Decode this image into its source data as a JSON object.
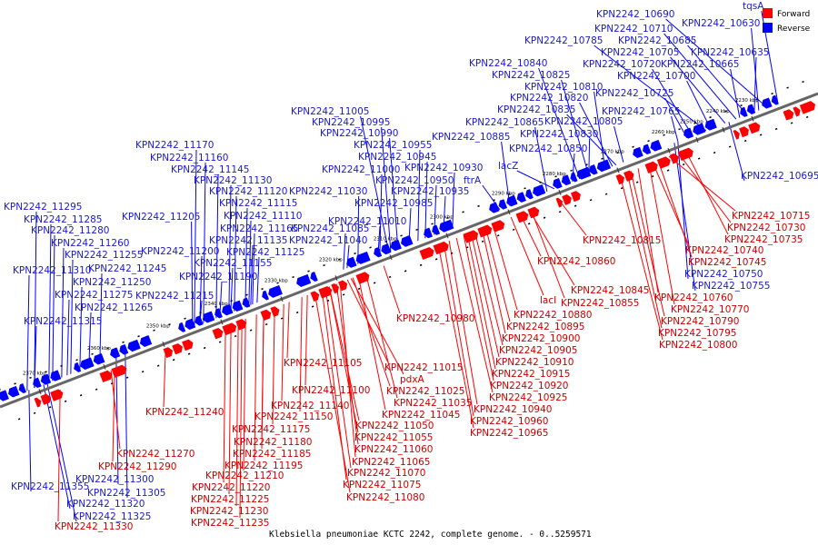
{
  "caption": "Klebsiella pneumoniae KCTC 2242, complete genome. - 0..5259571",
  "legend": [
    {
      "label": "Forward",
      "color": "#ff0000"
    },
    {
      "label": "Reverse",
      "color": "#0000ff"
    }
  ],
  "colors": {
    "forward": "#ff0000",
    "reverse": "#0000ff",
    "forward_label": "#cc0000",
    "reverse_label": "#1a1acc",
    "backbone": "#666666"
  },
  "ticks": [
    "2230 kbp",
    "2240 kbp",
    "2250 kbp",
    "2260 kbp",
    "2270 kbp",
    "2280 kbp",
    "2290 kbp",
    "2300 kbp",
    "2310 kbp",
    "2320 kbp",
    "2330 kbp",
    "2340 kbp",
    "2350 kbp",
    "2360 kbp",
    "2370 kbp"
  ],
  "reverse_labels": [
    "tqsA",
    "KPN2242_10690",
    "KPN2242_10630",
    "KPN2242_10710",
    "KPN2242_10785",
    "KPN2242_10685",
    "KPN2242_10705",
    "KPN2242_10635",
    "KPN2242_10840",
    "KPN2242_10720",
    "KPN2242_10665",
    "KPN2242_10825",
    "KPN2242_10700",
    "KPN2242_10810",
    "KPN2242_10820",
    "KPN2242_10725",
    "KPN2242_11005",
    "KPN2242_10835",
    "KPN2242_10765",
    "KPN2242_10995",
    "KPN2242_10865",
    "KPN2242_10805",
    "KPN2242_10990",
    "KPN2242_10830",
    "KPN2242_10885",
    "KPN2242_11170",
    "KPN2242_10955",
    "KPN2242_10850",
    "KPN2242_11160",
    "KPN2242_10945",
    "lacZ",
    "KPN2242_11145",
    "KPN2242_11000",
    "KPN2242_10930",
    "KPN2242_11130",
    "KPN2242_10950",
    "ftrA",
    "KPN2242_11120",
    "KPN2242_11030",
    "KPN2242_10935",
    "KPN2242_11115",
    "KPN2242_10985",
    "KPN2242_11295",
    "KPN2242_11110",
    "KPN2242_11205",
    "KPN2242_11010",
    "KPN2242_11285",
    "KPN2242_11165",
    "KPN2242_11085",
    "KPN2242_11280",
    "KPN2242_11135",
    "KPN2242_11040",
    "KPN2242_11260",
    "KPN2242_11200",
    "KPN2242_11125",
    "KPN2242_11255",
    "KPN2242_11245",
    "KPN2242_11155",
    "KPN2242_11310",
    "KPN2242_11190",
    "KPN2242_11250",
    "KPN2242_11275",
    "KPN2242_11215",
    "KPN2242_11265",
    "KPN2242_11315",
    "KPN2242_11300",
    "KPN2242_11305",
    "KPN2242_11355",
    "KPN2242_11320",
    "KPN2242_11325",
    "KPN2242_10695",
    "KPN2242_10750",
    "KPN2242_10755"
  ],
  "forward_labels": [
    "KPN2242_10715",
    "KPN2242_10730",
    "KPN2242_10735",
    "KPN2242_10815",
    "KPN2242_10740",
    "KPN2242_10745",
    "KPN2242_10860",
    "KPN2242_10845",
    "KPN2242_10760",
    "lacI",
    "KPN2242_10855",
    "KPN2242_10770",
    "KPN2242_10880",
    "KPN2242_10790",
    "KPN2242_10980",
    "KPN2242_10895",
    "KPN2242_10795",
    "KPN2242_10900",
    "KPN2242_10800",
    "KPN2242_10905",
    "KPN2242_11105",
    "KPN2242_11015",
    "KPN2242_10910",
    "pdxA",
    "KPN2242_10915",
    "KPN2242_11100",
    "KPN2242_11025",
    "KPN2242_10920",
    "KPN2242_11140",
    "KPN2242_11035",
    "KPN2242_10925",
    "KPN2242_11240",
    "KPN2242_11150",
    "KPN2242_11045",
    "KPN2242_10940",
    "KPN2242_11175",
    "KPN2242_11050",
    "KPN2242_10960",
    "KPN2242_11180",
    "KPN2242_11055",
    "KPN2242_10965",
    "KPN2242_11185",
    "KPN2242_11060",
    "KPN2242_11195",
    "KPN2242_11065",
    "KPN2242_11270",
    "KPN2242_11290",
    "KPN2242_11210",
    "KPN2242_11070",
    "KPN2242_11220",
    "KPN2242_11075",
    "KPN2242_11225",
    "KPN2242_11080",
    "KPN2242_11230",
    "KPN2242_11235",
    "KPN2242_11330"
  ]
}
